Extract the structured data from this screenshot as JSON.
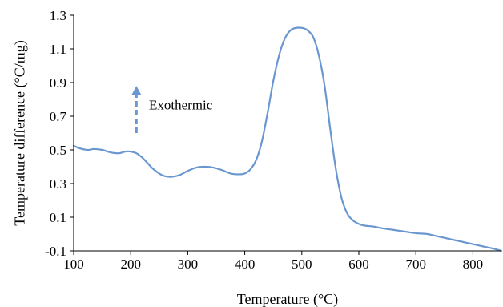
{
  "chart_data": {
    "type": "line",
    "title": "",
    "xlabel": "Temperature (°C)",
    "ylabel": "Temperature difference (°C/mg)",
    "xlim": [
      100,
      850
    ],
    "ylim": [
      -0.1,
      1.3
    ],
    "x_ticks": [
      100,
      200,
      300,
      400,
      500,
      600,
      700,
      800
    ],
    "y_ticks": [
      -0.1,
      0.1,
      0.3,
      0.5,
      0.7,
      0.9,
      1.1,
      1.3
    ],
    "x_tick_labels": [
      "100",
      "200",
      "300",
      "400",
      "500",
      "600",
      "700",
      "800"
    ],
    "y_tick_labels": [
      "-0.1",
      "0.1",
      "0.3",
      "0.5",
      "0.7",
      "0.9",
      "1.1",
      "1.3"
    ],
    "grid": false,
    "legend": "none",
    "series": [
      {
        "color": "#6a97d0",
        "x": [
          100,
          110,
          125,
          135,
          150,
          165,
          180,
          190,
          200,
          210,
          220,
          230,
          240,
          255,
          270,
          285,
          300,
          315,
          330,
          345,
          360,
          375,
          390,
          400,
          410,
          420,
          430,
          440,
          450,
          460,
          470,
          480,
          490,
          500,
          505,
          510,
          520,
          530,
          540,
          550,
          560,
          570,
          580,
          590,
          600,
          610,
          625,
          640,
          660,
          680,
          700,
          720,
          740,
          760,
          780,
          800,
          820,
          840,
          850
        ],
        "y": [
          0.525,
          0.51,
          0.5,
          0.505,
          0.5,
          0.485,
          0.48,
          0.49,
          0.49,
          0.48,
          0.455,
          0.42,
          0.385,
          0.35,
          0.34,
          0.35,
          0.375,
          0.395,
          0.4,
          0.395,
          0.38,
          0.36,
          0.355,
          0.36,
          0.385,
          0.44,
          0.55,
          0.72,
          0.91,
          1.06,
          1.16,
          1.21,
          1.225,
          1.225,
          1.22,
          1.21,
          1.17,
          1.06,
          0.88,
          0.62,
          0.38,
          0.21,
          0.12,
          0.08,
          0.06,
          0.05,
          0.045,
          0.035,
          0.025,
          0.015,
          0.005,
          0.0,
          -0.015,
          -0.03,
          -0.045,
          -0.06,
          -0.075,
          -0.09,
          -0.1
        ]
      }
    ],
    "annotation": {
      "text": "Exothermic",
      "arrow": "up",
      "x": 210,
      "y_from": 0.6,
      "y_to": 0.88,
      "text_x": 232,
      "text_y": 0.77,
      "color": "#6a97d0"
    }
  }
}
